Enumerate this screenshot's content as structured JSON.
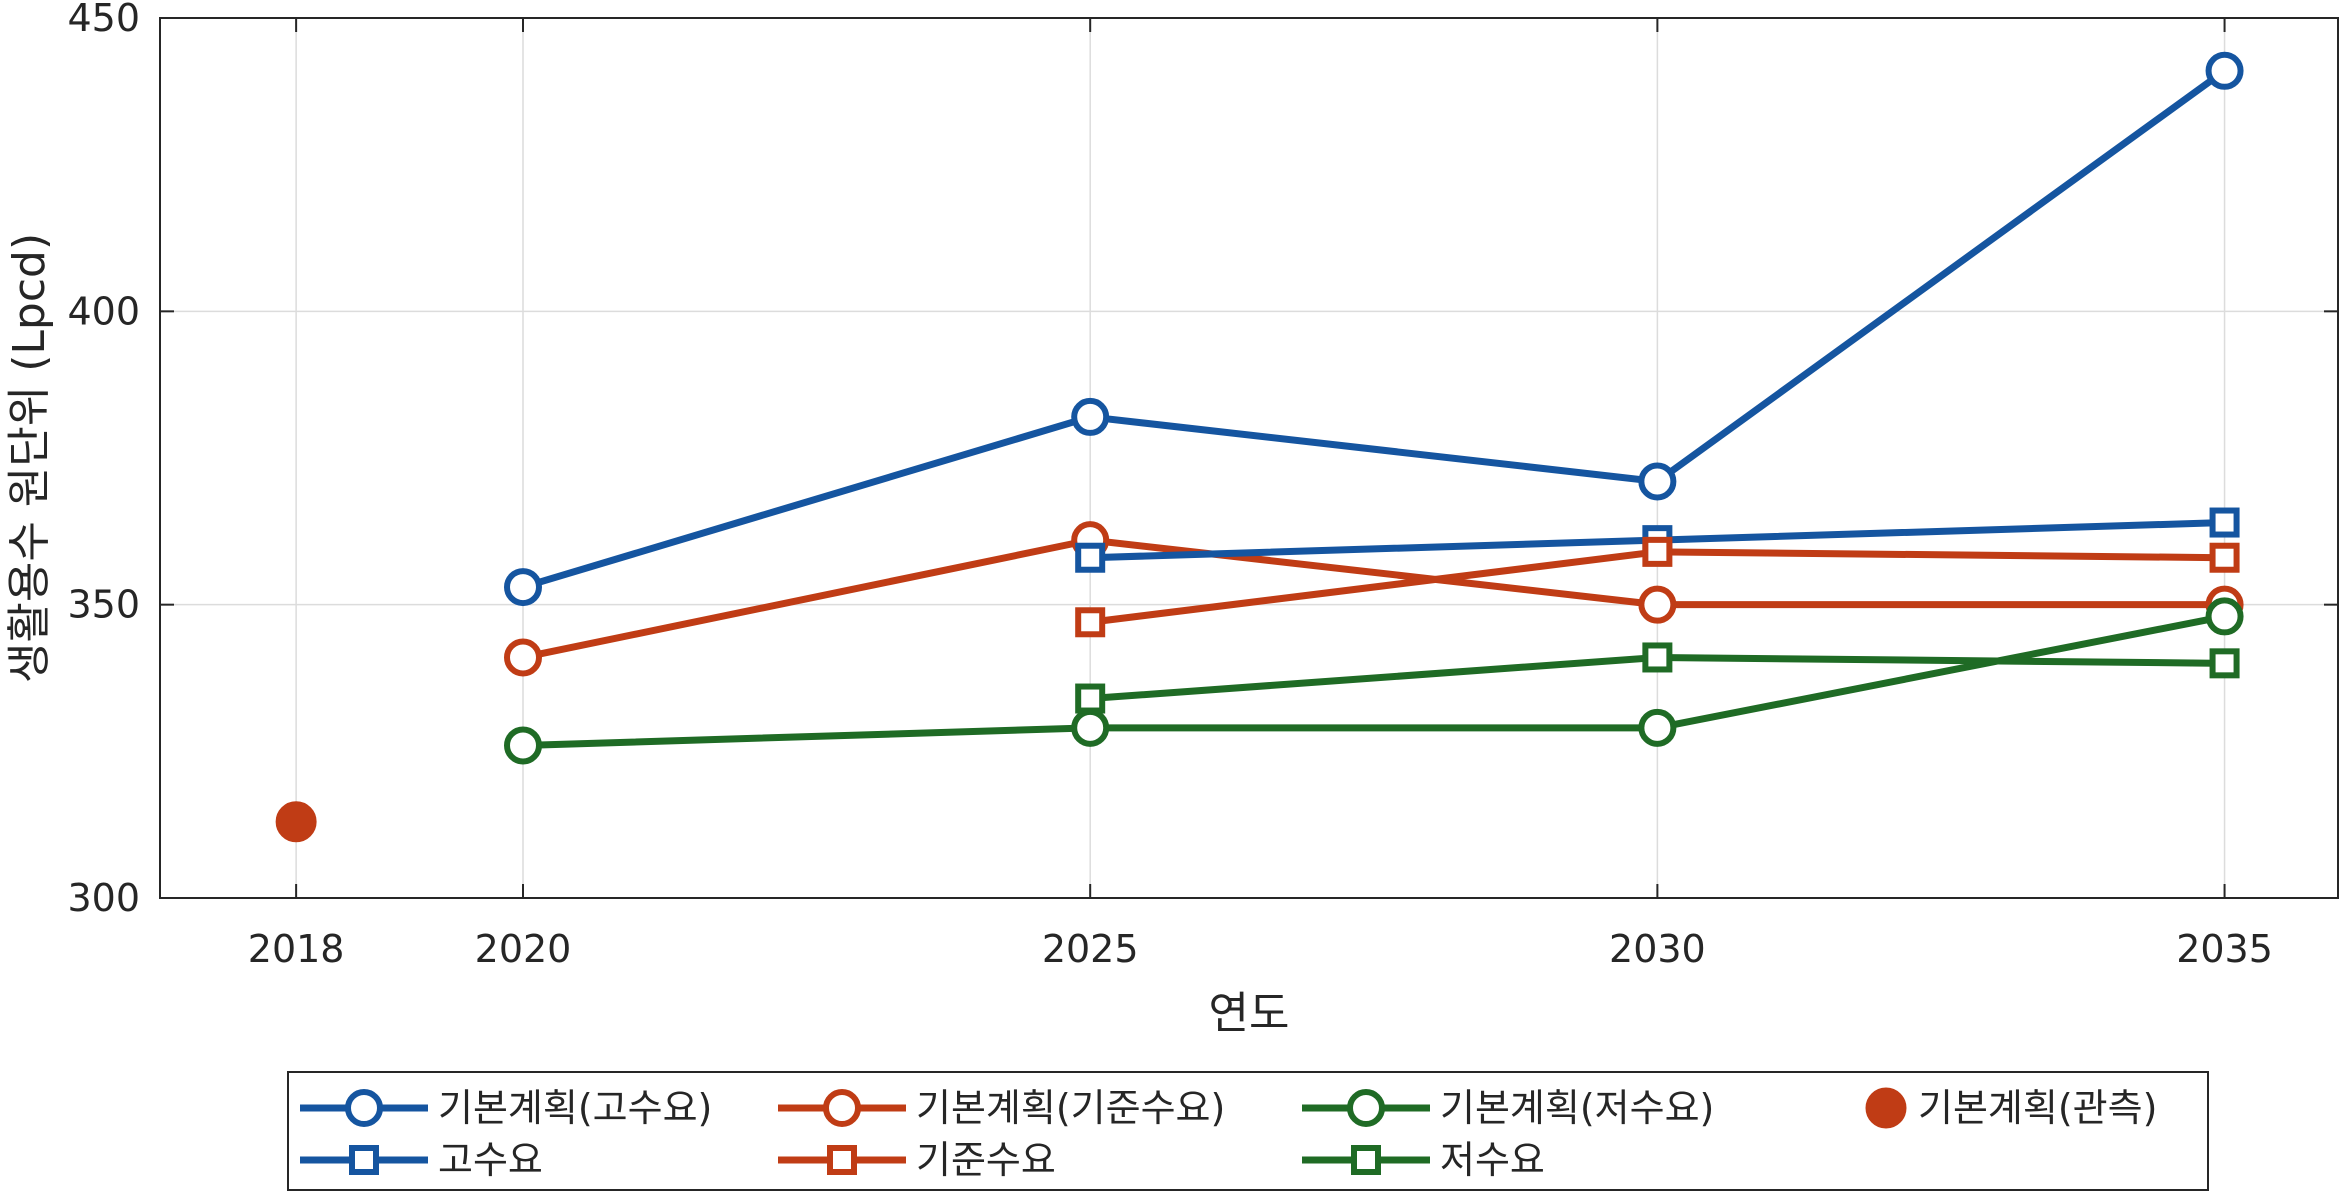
{
  "chart_data": {
    "type": "line",
    "xlabel": "연도",
    "ylabel": "생활용수 원단위 (Lpcd)",
    "xlim": [
      2016.8,
      2036.0
    ],
    "ylim": [
      300,
      450
    ],
    "xticks": [
      2018,
      2020,
      2025,
      2030,
      2035
    ],
    "yticks": [
      300,
      350,
      400,
      450
    ],
    "grid": true,
    "legend_position": "bottom-outside",
    "series": [
      {
        "name": "기본계획(고수요)",
        "marker": "circle",
        "color": "#1555A0",
        "points": [
          [
            2020,
            353
          ],
          [
            2025,
            382
          ],
          [
            2030,
            371
          ],
          [
            2035,
            441
          ]
        ]
      },
      {
        "name": "기본계획(기준수요)",
        "marker": "circle",
        "color": "#C03C15",
        "points": [
          [
            2020,
            341
          ],
          [
            2025,
            361
          ],
          [
            2030,
            350
          ],
          [
            2035,
            350
          ]
        ]
      },
      {
        "name": "기본계획(저수요)",
        "marker": "circle",
        "color": "#1F6B25",
        "points": [
          [
            2020,
            326
          ],
          [
            2025,
            329
          ],
          [
            2030,
            329
          ],
          [
            2035,
            348
          ]
        ]
      },
      {
        "name": "기본계획(관측)",
        "marker": "filled-circle",
        "color": "#C03C15",
        "points": [
          [
            2018,
            313
          ]
        ]
      },
      {
        "name": "고수요",
        "marker": "square",
        "color": "#1555A0",
        "points": [
          [
            2025,
            358
          ],
          [
            2030,
            361
          ],
          [
            2035,
            364
          ]
        ]
      },
      {
        "name": "기준수요",
        "marker": "square",
        "color": "#C03C15",
        "points": [
          [
            2025,
            347
          ],
          [
            2030,
            359
          ],
          [
            2035,
            358
          ]
        ]
      },
      {
        "name": "저수요",
        "marker": "square",
        "color": "#1F6B25",
        "points": [
          [
            2025,
            334
          ],
          [
            2030,
            341
          ],
          [
            2035,
            340
          ]
        ]
      }
    ]
  }
}
